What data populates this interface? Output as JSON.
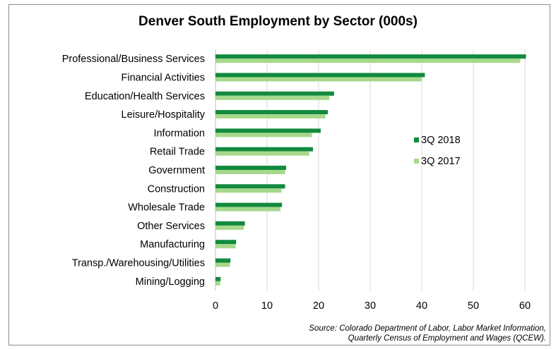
{
  "chart_data": {
    "type": "bar",
    "orientation": "horizontal",
    "title": "Denver South Employment  by Sector (000s)",
    "categories": [
      "Professional/Business Services",
      "Financial Activities",
      "Education/Health Services",
      "Leisure/Hospitality",
      "Information",
      "Retail Trade",
      "Government",
      "Construction",
      "Wholesale Trade",
      "Other Services",
      "Manufacturing",
      "Transp./Warehousing/Utilities",
      "Mining/Logging"
    ],
    "series": [
      {
        "name": "3Q 2018",
        "color": "#138a3e",
        "values": [
          60.2,
          40.6,
          23.0,
          21.8,
          20.4,
          18.9,
          13.7,
          13.5,
          12.9,
          5.7,
          4.0,
          2.9,
          1.0
        ]
      },
      {
        "name": "3Q 2017",
        "color": "#a6d88c",
        "values": [
          59.1,
          40.0,
          22.1,
          21.3,
          18.7,
          18.2,
          13.5,
          12.8,
          12.6,
          5.5,
          3.9,
          2.8,
          0.9
        ]
      }
    ],
    "xlim": [
      0,
      60
    ],
    "xticks": [
      0,
      10,
      20,
      30,
      40,
      50,
      60
    ],
    "grid": "vertical",
    "legend_position": "right"
  },
  "source": {
    "line1": "Source: Colorado Department of Labor, Labor Market Information,",
    "line2": "Quarterly Census of Employment and Wages (QCEW)."
  }
}
